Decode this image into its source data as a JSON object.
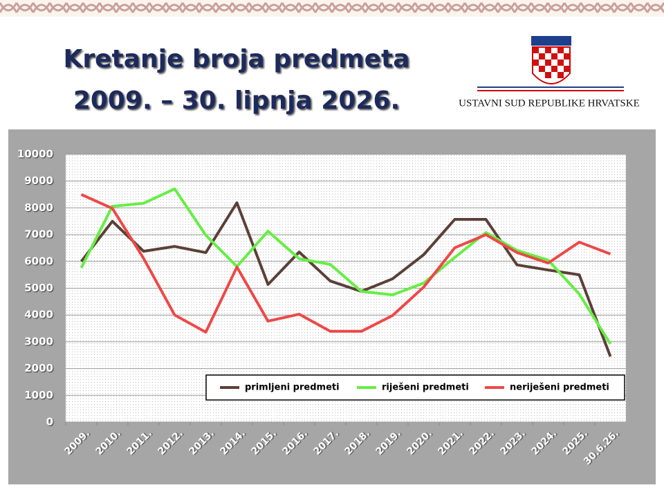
{
  "logo": {
    "text": "USTAVNI SUD REPUBLIKE HRVATSKE"
  },
  "chart_data": {
    "type": "line",
    "title": "Kretanje broja predmeta",
    "subtitle": "2009. – 30. lipnja 2026.",
    "categories": [
      "2009.",
      "2010.",
      "2011.",
      "2012.",
      "2013.",
      "2014.",
      "2015.",
      "2016.",
      "2017.",
      "2018.",
      "2019.",
      "2020.",
      "2021.",
      "2022.",
      "2023.",
      "2024.",
      "2025.",
      "30.6.26."
    ],
    "series": [
      {
        "name": "primljeni predmeti",
        "color": "#5b4037",
        "values": [
          6000,
          7500,
          6380,
          6560,
          6330,
          8190,
          5140,
          6350,
          5270,
          4880,
          5350,
          6250,
          7570,
          7570,
          5870,
          5680,
          5500,
          2450
        ]
      },
      {
        "name": "riješeni predmeti",
        "color": "#66ee44",
        "values": [
          5760,
          8060,
          8170,
          8710,
          6980,
          5810,
          7130,
          6100,
          5890,
          4880,
          4750,
          5190,
          6150,
          7080,
          6410,
          6050,
          4780,
          2920
        ]
      },
      {
        "name": "neriješeni predmeti",
        "color": "#ee4848",
        "values": [
          8500,
          7980,
          6120,
          4000,
          3360,
          5790,
          3770,
          4030,
          3390,
          3390,
          3980,
          5040,
          6510,
          7000,
          6330,
          5940,
          6720,
          6280
        ]
      }
    ],
    "ylim": [
      0,
      10000
    ],
    "yticks": [
      0,
      1000,
      2000,
      3000,
      4000,
      5000,
      6000,
      7000,
      8000,
      9000,
      10000
    ],
    "grid": true,
    "legend": "bottom-right"
  }
}
